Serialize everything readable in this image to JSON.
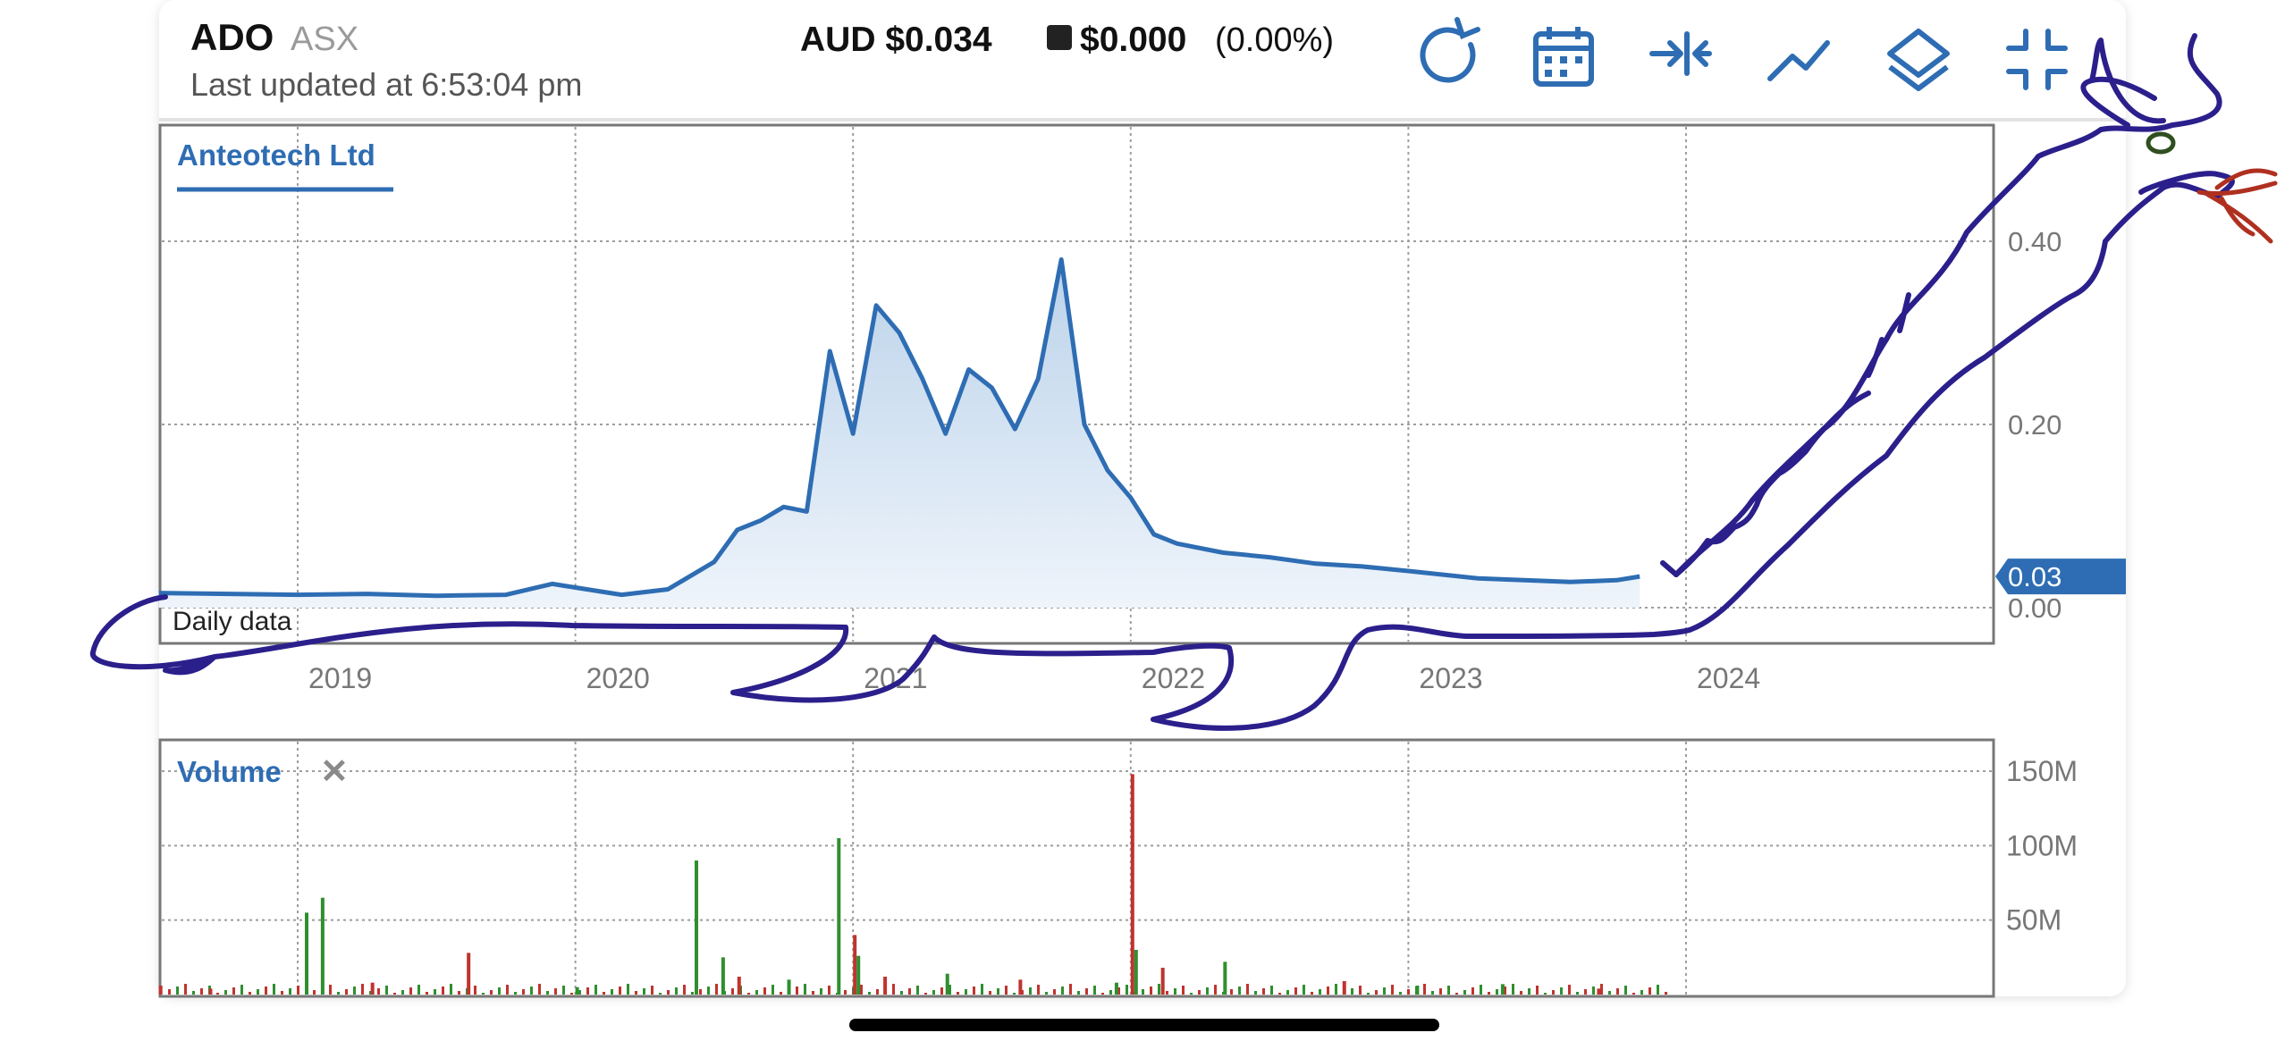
{
  "header": {
    "symbol": "ADO",
    "exchange": "ASX",
    "last_updated": "Last updated at 6:53:04 pm",
    "price": "AUD $0.034",
    "change": "$0.000",
    "change_pct": "(0.00%)"
  },
  "toolbar": [
    "refresh-icon",
    "calendar-icon",
    "compress-icon",
    "line-chart-icon",
    "layers-icon",
    "minimize-icon"
  ],
  "price_panel": {
    "tab_label": "Anteotech Ltd",
    "footer_label": "Daily data",
    "y_ticks": [
      "0.40",
      "0.20",
      "0.00"
    ],
    "current_value_label": "0.03",
    "x_ticks": [
      "2019",
      "2020",
      "2021",
      "2022",
      "2023",
      "2024"
    ]
  },
  "volume_panel": {
    "tab_label": "Volume",
    "close_glyph": "✕",
    "y_ticks": [
      "150M",
      "100M",
      "50M"
    ]
  },
  "colors": {
    "line": "#2e6db3",
    "fill_top": "#bcd3ea",
    "grid": "#9e9e9e",
    "axis_label": "#777777",
    "vol_up": "#2f8f2f",
    "vol_down": "#c0332f",
    "badge": "#2e6db3",
    "drawing_blue": "#2b1f8c",
    "drawing_red": "#b03020",
    "drawing_green": "#2f4f1f"
  },
  "chart_data": [
    {
      "type": "area",
      "title": "Anteotech Ltd",
      "ylim": [
        0,
        0.45
      ],
      "grid": true,
      "x": [
        "2018-07",
        "2018-10",
        "2019-01",
        "2019-04",
        "2019-07",
        "2019-10",
        "2019-12",
        "2020-01",
        "2020-03",
        "2020-05",
        "2020-07",
        "2020-08",
        "2020-09",
        "2020-10",
        "2020-11",
        "2020-12",
        "2021-01",
        "2021-02",
        "2021-03",
        "2021-04",
        "2021-05",
        "2021-06",
        "2021-07",
        "2021-08",
        "2021-09",
        "2021-10",
        "2021-11",
        "2021-12",
        "2022-01",
        "2022-02",
        "2022-03",
        "2022-05",
        "2022-07",
        "2022-09",
        "2022-11",
        "2023-01",
        "2023-04",
        "2023-06",
        "2023-08",
        "2023-10",
        "2023-11"
      ],
      "values": [
        0.016,
        0.015,
        0.014,
        0.015,
        0.013,
        0.014,
        0.026,
        0.022,
        0.014,
        0.02,
        0.05,
        0.085,
        0.095,
        0.11,
        0.105,
        0.28,
        0.19,
        0.33,
        0.3,
        0.25,
        0.19,
        0.26,
        0.24,
        0.195,
        0.25,
        0.38,
        0.2,
        0.15,
        0.12,
        0.08,
        0.07,
        0.06,
        0.055,
        0.048,
        0.045,
        0.04,
        0.032,
        0.03,
        0.028,
        0.03,
        0.034
      ]
    },
    {
      "type": "bar",
      "title": "Volume",
      "ylim": [
        0,
        150
      ],
      "grid": true,
      "x": [
        "2018-07",
        "2018-09",
        "2019-01",
        "2019-02",
        "2019-04",
        "2019-08",
        "2020-01",
        "2020-06",
        "2020-07",
        "2020-08",
        "2020-10",
        "2020-12",
        "2021-01",
        "2021-01",
        "2021-02",
        "2021-05",
        "2021-08",
        "2021-12",
        "2022-01",
        "2022-01",
        "2022-02",
        "2022-05",
        "2022-10",
        "2023-01",
        "2023-05",
        "2023-09"
      ],
      "values": [
        6,
        4,
        55,
        65,
        8,
        28,
        5,
        90,
        25,
        12,
        10,
        105,
        40,
        26,
        12,
        14,
        10,
        8,
        148,
        30,
        18,
        22,
        9,
        6,
        7,
        4
      ],
      "up": [
        false,
        false,
        true,
        true,
        false,
        false,
        true,
        true,
        true,
        false,
        true,
        true,
        false,
        true,
        false,
        true,
        false,
        true,
        false,
        true,
        false,
        true,
        false,
        true,
        true,
        false
      ]
    }
  ]
}
